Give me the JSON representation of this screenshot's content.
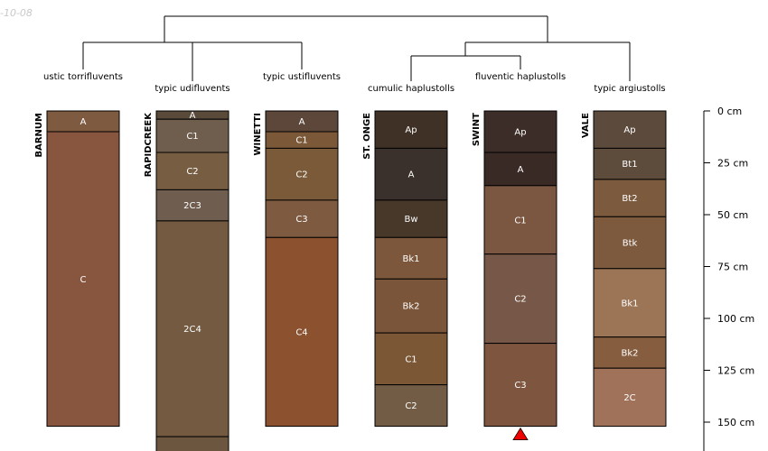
{
  "corner_text": "-10-08",
  "diagram": {
    "depth_unit": "cm",
    "depth_ticks": [
      {
        "value": 0,
        "label": "0 cm"
      },
      {
        "value": 25,
        "label": "25 cm"
      },
      {
        "value": 50,
        "label": "50 cm"
      },
      {
        "value": 75,
        "label": "75 cm"
      },
      {
        "value": 100,
        "label": "100 cm"
      },
      {
        "value": 125,
        "label": "125 cm"
      },
      {
        "value": 150,
        "label": "150 cm"
      }
    ],
    "profiles": [
      {
        "series": "BARNUM",
        "taxon": "ustic torrifluvents",
        "horizons": [
          {
            "name": "A",
            "top": 0,
            "bottom": 10,
            "color": "#7e5a40"
          },
          {
            "name": "C",
            "top": 10,
            "bottom": 152,
            "color": "#88563f"
          }
        ]
      },
      {
        "series": "RAPIDCREEK",
        "taxon": "typic udifluvents",
        "horizons": [
          {
            "name": "A",
            "top": 0,
            "bottom": 4,
            "color": "#5a4a3a"
          },
          {
            "name": "C1",
            "top": 4,
            "bottom": 20,
            "color": "#6f5e4e"
          },
          {
            "name": "C2",
            "top": 20,
            "bottom": 38,
            "color": "#775d42"
          },
          {
            "name": "2C3",
            "top": 38,
            "bottom": 53,
            "color": "#6f5d4f"
          },
          {
            "name": "2C4",
            "top": 53,
            "bottom": 157,
            "color": "#735a41"
          },
          {
            "name": "",
            "top": 157,
            "bottom": 165,
            "color": "#6c5640"
          }
        ]
      },
      {
        "series": "WINETTI",
        "taxon": "typic ustifluvents",
        "horizons": [
          {
            "name": "A",
            "top": 0,
            "bottom": 10,
            "color": "#5c473a"
          },
          {
            "name": "C1",
            "top": 10,
            "bottom": 18,
            "color": "#7b5838"
          },
          {
            "name": "C2",
            "top": 18,
            "bottom": 43,
            "color": "#7a5a39"
          },
          {
            "name": "C3",
            "top": 43,
            "bottom": 61,
            "color": "#7e5a40"
          },
          {
            "name": "C4",
            "top": 61,
            "bottom": 152,
            "color": "#8c5230"
          }
        ]
      },
      {
        "series": "ST. ONGE",
        "taxon": "cumulic haplustolls",
        "horizons": [
          {
            "name": "Ap",
            "top": 0,
            "bottom": 18,
            "color": "#3f3125"
          },
          {
            "name": "A",
            "top": 18,
            "bottom": 43,
            "color": "#3a302c"
          },
          {
            "name": "Bw",
            "top": 43,
            "bottom": 61,
            "color": "#47382a"
          },
          {
            "name": "Bk1",
            "top": 61,
            "bottom": 81,
            "color": "#7d573b"
          },
          {
            "name": "Bk2",
            "top": 81,
            "bottom": 107,
            "color": "#7a5539"
          },
          {
            "name": "C1",
            "top": 107,
            "bottom": 132,
            "color": "#7c5736"
          },
          {
            "name": "C2",
            "top": 132,
            "bottom": 152,
            "color": "#725c46"
          }
        ]
      },
      {
        "series": "SWINT",
        "taxon": "fluventic haplustolls",
        "horizons": [
          {
            "name": "Ap",
            "top": 0,
            "bottom": 20,
            "color": "#3c2d28"
          },
          {
            "name": "A",
            "top": 20,
            "bottom": 36,
            "color": "#3a2a25"
          },
          {
            "name": "C1",
            "top": 36,
            "bottom": 69,
            "color": "#7b5640"
          },
          {
            "name": "C2",
            "top": 69,
            "bottom": 112,
            "color": "#775848"
          },
          {
            "name": "C3",
            "top": 112,
            "bottom": 152,
            "color": "#7e5640"
          }
        ],
        "bottom_marker": true
      },
      {
        "series": "VALE",
        "taxon": "typic argiustolls",
        "horizons": [
          {
            "name": "Ap",
            "top": 0,
            "bottom": 18,
            "color": "#5c4a3c"
          },
          {
            "name": "Bt1",
            "top": 18,
            "bottom": 33,
            "color": "#5d4b3c"
          },
          {
            "name": "Bt2",
            "top": 33,
            "bottom": 51,
            "color": "#7b5a3e"
          },
          {
            "name": "Btk",
            "top": 51,
            "bottom": 76,
            "color": "#7d5a3e"
          },
          {
            "name": "Bk1",
            "top": 76,
            "bottom": 109,
            "color": "#9c7557"
          },
          {
            "name": "Bk2",
            "top": 109,
            "bottom": 124,
            "color": "#865e3f"
          },
          {
            "name": "2C",
            "top": 124,
            "bottom": 152,
            "color": "#a0725a"
          }
        ]
      }
    ]
  }
}
